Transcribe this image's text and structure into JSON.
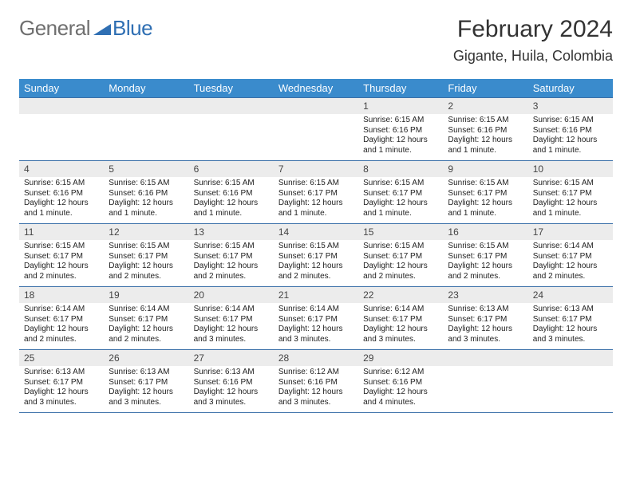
{
  "logo": {
    "general": "General",
    "blue": "Blue",
    "shape_color": "#2f6fb3"
  },
  "title": {
    "month": "February 2024",
    "location": "Gigante, Huila, Colombia"
  },
  "colors": {
    "header_bg": "#3a8bcc",
    "header_text": "#ffffff",
    "daynum_bg": "#ececec",
    "rule": "#3a6fa8",
    "body_text": "#222222"
  },
  "weekdays": [
    "Sunday",
    "Monday",
    "Tuesday",
    "Wednesday",
    "Thursday",
    "Friday",
    "Saturday"
  ],
  "weeks": [
    [
      null,
      null,
      null,
      null,
      {
        "n": "1",
        "sunrise": "Sunrise: 6:15 AM",
        "sunset": "Sunset: 6:16 PM",
        "daylight": "Daylight: 12 hours and 1 minute."
      },
      {
        "n": "2",
        "sunrise": "Sunrise: 6:15 AM",
        "sunset": "Sunset: 6:16 PM",
        "daylight": "Daylight: 12 hours and 1 minute."
      },
      {
        "n": "3",
        "sunrise": "Sunrise: 6:15 AM",
        "sunset": "Sunset: 6:16 PM",
        "daylight": "Daylight: 12 hours and 1 minute."
      }
    ],
    [
      {
        "n": "4",
        "sunrise": "Sunrise: 6:15 AM",
        "sunset": "Sunset: 6:16 PM",
        "daylight": "Daylight: 12 hours and 1 minute."
      },
      {
        "n": "5",
        "sunrise": "Sunrise: 6:15 AM",
        "sunset": "Sunset: 6:16 PM",
        "daylight": "Daylight: 12 hours and 1 minute."
      },
      {
        "n": "6",
        "sunrise": "Sunrise: 6:15 AM",
        "sunset": "Sunset: 6:16 PM",
        "daylight": "Daylight: 12 hours and 1 minute."
      },
      {
        "n": "7",
        "sunrise": "Sunrise: 6:15 AM",
        "sunset": "Sunset: 6:17 PM",
        "daylight": "Daylight: 12 hours and 1 minute."
      },
      {
        "n": "8",
        "sunrise": "Sunrise: 6:15 AM",
        "sunset": "Sunset: 6:17 PM",
        "daylight": "Daylight: 12 hours and 1 minute."
      },
      {
        "n": "9",
        "sunrise": "Sunrise: 6:15 AM",
        "sunset": "Sunset: 6:17 PM",
        "daylight": "Daylight: 12 hours and 1 minute."
      },
      {
        "n": "10",
        "sunrise": "Sunrise: 6:15 AM",
        "sunset": "Sunset: 6:17 PM",
        "daylight": "Daylight: 12 hours and 1 minute."
      }
    ],
    [
      {
        "n": "11",
        "sunrise": "Sunrise: 6:15 AM",
        "sunset": "Sunset: 6:17 PM",
        "daylight": "Daylight: 12 hours and 2 minutes."
      },
      {
        "n": "12",
        "sunrise": "Sunrise: 6:15 AM",
        "sunset": "Sunset: 6:17 PM",
        "daylight": "Daylight: 12 hours and 2 minutes."
      },
      {
        "n": "13",
        "sunrise": "Sunrise: 6:15 AM",
        "sunset": "Sunset: 6:17 PM",
        "daylight": "Daylight: 12 hours and 2 minutes."
      },
      {
        "n": "14",
        "sunrise": "Sunrise: 6:15 AM",
        "sunset": "Sunset: 6:17 PM",
        "daylight": "Daylight: 12 hours and 2 minutes."
      },
      {
        "n": "15",
        "sunrise": "Sunrise: 6:15 AM",
        "sunset": "Sunset: 6:17 PM",
        "daylight": "Daylight: 12 hours and 2 minutes."
      },
      {
        "n": "16",
        "sunrise": "Sunrise: 6:15 AM",
        "sunset": "Sunset: 6:17 PM",
        "daylight": "Daylight: 12 hours and 2 minutes."
      },
      {
        "n": "17",
        "sunrise": "Sunrise: 6:14 AM",
        "sunset": "Sunset: 6:17 PM",
        "daylight": "Daylight: 12 hours and 2 minutes."
      }
    ],
    [
      {
        "n": "18",
        "sunrise": "Sunrise: 6:14 AM",
        "sunset": "Sunset: 6:17 PM",
        "daylight": "Daylight: 12 hours and 2 minutes."
      },
      {
        "n": "19",
        "sunrise": "Sunrise: 6:14 AM",
        "sunset": "Sunset: 6:17 PM",
        "daylight": "Daylight: 12 hours and 2 minutes."
      },
      {
        "n": "20",
        "sunrise": "Sunrise: 6:14 AM",
        "sunset": "Sunset: 6:17 PM",
        "daylight": "Daylight: 12 hours and 3 minutes."
      },
      {
        "n": "21",
        "sunrise": "Sunrise: 6:14 AM",
        "sunset": "Sunset: 6:17 PM",
        "daylight": "Daylight: 12 hours and 3 minutes."
      },
      {
        "n": "22",
        "sunrise": "Sunrise: 6:14 AM",
        "sunset": "Sunset: 6:17 PM",
        "daylight": "Daylight: 12 hours and 3 minutes."
      },
      {
        "n": "23",
        "sunrise": "Sunrise: 6:13 AM",
        "sunset": "Sunset: 6:17 PM",
        "daylight": "Daylight: 12 hours and 3 minutes."
      },
      {
        "n": "24",
        "sunrise": "Sunrise: 6:13 AM",
        "sunset": "Sunset: 6:17 PM",
        "daylight": "Daylight: 12 hours and 3 minutes."
      }
    ],
    [
      {
        "n": "25",
        "sunrise": "Sunrise: 6:13 AM",
        "sunset": "Sunset: 6:17 PM",
        "daylight": "Daylight: 12 hours and 3 minutes."
      },
      {
        "n": "26",
        "sunrise": "Sunrise: 6:13 AM",
        "sunset": "Sunset: 6:17 PM",
        "daylight": "Daylight: 12 hours and 3 minutes."
      },
      {
        "n": "27",
        "sunrise": "Sunrise: 6:13 AM",
        "sunset": "Sunset: 6:16 PM",
        "daylight": "Daylight: 12 hours and 3 minutes."
      },
      {
        "n": "28",
        "sunrise": "Sunrise: 6:12 AM",
        "sunset": "Sunset: 6:16 PM",
        "daylight": "Daylight: 12 hours and 3 minutes."
      },
      {
        "n": "29",
        "sunrise": "Sunrise: 6:12 AM",
        "sunset": "Sunset: 6:16 PM",
        "daylight": "Daylight: 12 hours and 4 minutes."
      },
      null,
      null
    ]
  ]
}
